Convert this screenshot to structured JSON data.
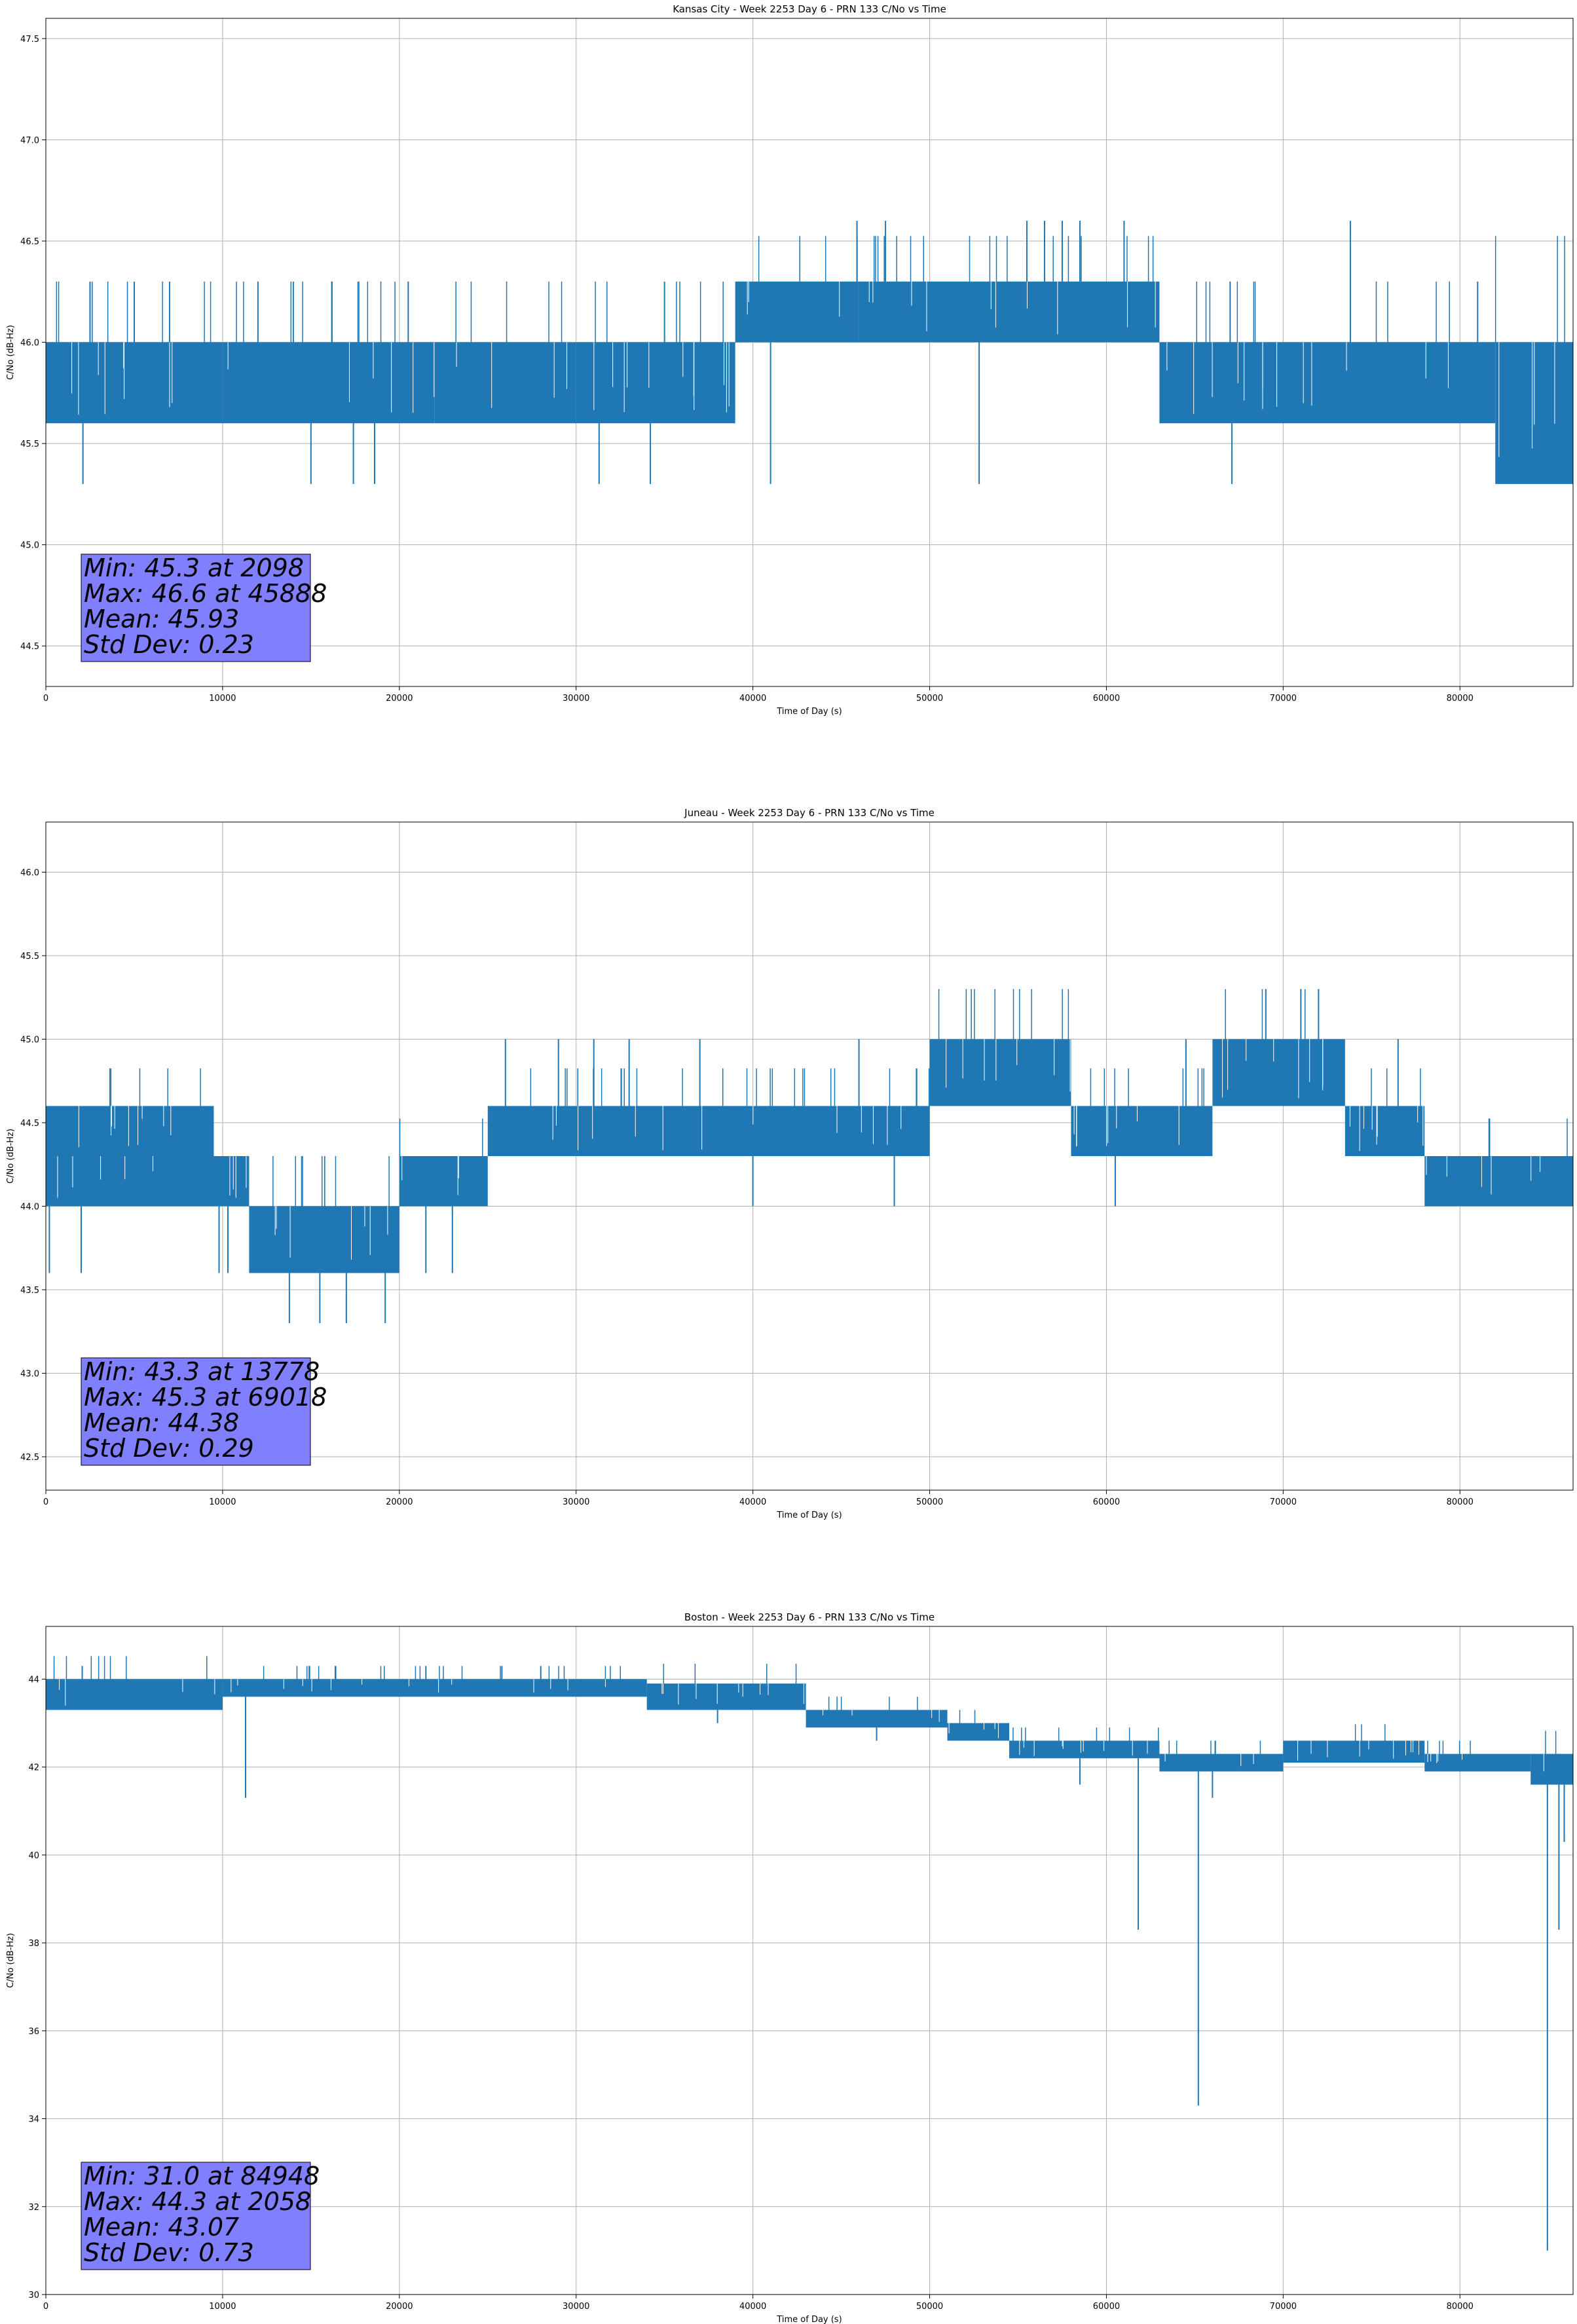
{
  "figure": {
    "background": "#ffffff",
    "line_color": "#1f77b4",
    "stats_box_color": "#8080ff",
    "grid_color": "#b0b0b0"
  },
  "chart_data": [
    {
      "type": "line",
      "title": "Kansas City - Week 2253 Day 6 - PRN 133 C/No vs Time",
      "xlabel": "Time of Day (s)",
      "ylabel": "C/No (dB-Hz)",
      "xlim": [
        0,
        86400
      ],
      "ylim": [
        44.3,
        47.6
      ],
      "xticks": [
        0,
        10000,
        20000,
        30000,
        40000,
        50000,
        60000,
        70000,
        80000
      ],
      "yticks": [
        44.5,
        45.0,
        45.5,
        46.0,
        46.5,
        47.0,
        47.5
      ],
      "ytick_labels": [
        "44.5",
        "45.0",
        "45.5",
        "46.0",
        "46.5",
        "47.0",
        "47.5"
      ],
      "grid": true,
      "series": [
        {
          "bands": [
            {
              "x": [
                0,
                10000
              ],
              "y": [
                45.6,
                46.0
              ]
            },
            {
              "x": [
                10000,
                22000
              ],
              "y": [
                45.6,
                46.0
              ]
            },
            {
              "x": [
                22000,
                30000
              ],
              "y": [
                45.6,
                46.0
              ]
            },
            {
              "x": [
                30000,
                39000
              ],
              "y": [
                45.6,
                46.0
              ]
            },
            {
              "x": [
                39000,
                46000
              ],
              "y": [
                46.0,
                46.3
              ]
            },
            {
              "x": [
                46000,
                63000
              ],
              "y": [
                46.0,
                46.3
              ]
            },
            {
              "x": [
                63000,
                82000
              ],
              "y": [
                45.6,
                46.0
              ]
            },
            {
              "x": [
                82000,
                86400
              ],
              "y": [
                45.3,
                46.0
              ]
            }
          ],
          "spikes": [
            {
              "x": 2098,
              "y": 45.3
            },
            {
              "x": 15000,
              "y": 45.3
            },
            {
              "x": 17400,
              "y": 45.3
            },
            {
              "x": 18600,
              "y": 45.3
            },
            {
              "x": 31300,
              "y": 45.3
            },
            {
              "x": 34200,
              "y": 45.3
            },
            {
              "x": 41000,
              "y": 45.3
            },
            {
              "x": 52800,
              "y": 45.3
            },
            {
              "x": 67100,
              "y": 45.3
            },
            {
              "x": 45888,
              "y": 46.6
            },
            {
              "x": 47500,
              "y": 46.6
            },
            {
              "x": 55500,
              "y": 46.6
            },
            {
              "x": 56500,
              "y": 46.6
            },
            {
              "x": 57500,
              "y": 46.6
            },
            {
              "x": 58500,
              "y": 46.6
            },
            {
              "x": 61000,
              "y": 46.6
            },
            {
              "x": 73800,
              "y": 46.6
            },
            {
              "x": 2500,
              "y": 46.3
            },
            {
              "x": 5000,
              "y": 46.3
            },
            {
              "x": 7000,
              "y": 46.3
            },
            {
              "x": 12000,
              "y": 46.3
            },
            {
              "x": 14000,
              "y": 46.3
            },
            {
              "x": 20500,
              "y": 46.3
            },
            {
              "x": 35000,
              "y": 46.3
            },
            {
              "x": 67000,
              "y": 46.3
            },
            {
              "x": 81000,
              "y": 46.3
            }
          ]
        }
      ],
      "stats": [
        "Min: 45.3 at 2098",
        "Max: 46.6 at 45888",
        "Mean: 45.93",
        "Std Dev: 0.23"
      ]
    },
    {
      "type": "line",
      "title": "Juneau - Week 2253 Day 6 - PRN 133 C/No vs Time",
      "xlabel": "Time of Day (s)",
      "ylabel": "C/No (dB-Hz)",
      "xlim": [
        0,
        86400
      ],
      "ylim": [
        42.3,
        46.3
      ],
      "xticks": [
        0,
        10000,
        20000,
        30000,
        40000,
        50000,
        60000,
        70000,
        80000
      ],
      "yticks": [
        42.5,
        43.0,
        43.5,
        44.0,
        44.5,
        45.0,
        45.5,
        46.0
      ],
      "ytick_labels": [
        "42.5",
        "43.0",
        "43.5",
        "44.0",
        "44.5",
        "45.0",
        "45.5",
        "46.0"
      ],
      "grid": true,
      "series": [
        {
          "bands": [
            {
              "x": [
                0,
                9500
              ],
              "y": [
                44.3,
                44.6
              ]
            },
            {
              "x": [
                0,
                11500
              ],
              "y": [
                44.0,
                44.3
              ]
            },
            {
              "x": [
                11500,
                20000
              ],
              "y": [
                43.6,
                44.0
              ]
            },
            {
              "x": [
                20000,
                25000
              ],
              "y": [
                44.0,
                44.3
              ]
            },
            {
              "x": [
                25000,
                50000
              ],
              "y": [
                44.3,
                44.6
              ]
            },
            {
              "x": [
                50000,
                58000
              ],
              "y": [
                44.6,
                45.0
              ]
            },
            {
              "x": [
                58000,
                66000
              ],
              "y": [
                44.3,
                44.6
              ]
            },
            {
              "x": [
                66000,
                73500
              ],
              "y": [
                44.6,
                45.0
              ]
            },
            {
              "x": [
                73500,
                78000
              ],
              "y": [
                44.3,
                44.6
              ]
            },
            {
              "x": [
                78000,
                86400
              ],
              "y": [
                44.0,
                44.3
              ]
            }
          ],
          "spikes": [
            {
              "x": 200,
              "y": 43.6
            },
            {
              "x": 2000,
              "y": 43.6
            },
            {
              "x": 13778,
              "y": 43.3
            },
            {
              "x": 15500,
              "y": 43.3
            },
            {
              "x": 17000,
              "y": 43.3
            },
            {
              "x": 19200,
              "y": 43.3
            },
            {
              "x": 23000,
              "y": 43.6
            },
            {
              "x": 21500,
              "y": 43.6
            },
            {
              "x": 69018,
              "y": 45.3
            },
            {
              "x": 71000,
              "y": 45.3
            },
            {
              "x": 72000,
              "y": 45.3
            },
            {
              "x": 26000,
              "y": 45.0
            },
            {
              "x": 29000,
              "y": 45.0
            },
            {
              "x": 31000,
              "y": 45.0
            },
            {
              "x": 33000,
              "y": 45.0
            },
            {
              "x": 37000,
              "y": 45.0
            },
            {
              "x": 46000,
              "y": 45.0
            },
            {
              "x": 64500,
              "y": 45.0
            },
            {
              "x": 76500,
              "y": 45.0
            },
            {
              "x": 40000,
              "y": 44.0
            },
            {
              "x": 48000,
              "y": 44.0
            },
            {
              "x": 60500,
              "y": 44.0
            },
            {
              "x": 9800,
              "y": 43.6
            },
            {
              "x": 10300,
              "y": 43.6
            }
          ]
        }
      ],
      "stats": [
        "Min: 43.3 at 13778",
        "Max: 45.3 at 69018",
        "Mean: 44.38",
        "Std Dev: 0.29"
      ]
    },
    {
      "type": "line",
      "title": "Boston - Week 2253 Day 6 - PRN 133 C/No vs Time",
      "xlabel": "Time of Day (s)",
      "ylabel": "C/No (dB-Hz)",
      "xlim": [
        0,
        86400
      ],
      "ylim": [
        30,
        45.2
      ],
      "xticks": [
        0,
        10000,
        20000,
        30000,
        40000,
        50000,
        60000,
        70000,
        80000
      ],
      "yticks": [
        30,
        32,
        34,
        36,
        38,
        40,
        42,
        44
      ],
      "ytick_labels": [
        "30",
        "32",
        "34",
        "36",
        "38",
        "40",
        "42",
        "44"
      ],
      "grid": true,
      "series": [
        {
          "bands": [
            {
              "x": [
                0,
                10000
              ],
              "y": [
                43.3,
                44.0
              ]
            },
            {
              "x": [
                10000,
                34000
              ],
              "y": [
                43.6,
                44.0
              ]
            },
            {
              "x": [
                34000,
                43000
              ],
              "y": [
                43.3,
                43.9
              ]
            },
            {
              "x": [
                43000,
                51000
              ],
              "y": [
                42.9,
                43.3
              ]
            },
            {
              "x": [
                51000,
                54500
              ],
              "y": [
                42.6,
                43.0
              ]
            },
            {
              "x": [
                54500,
                63000
              ],
              "y": [
                42.2,
                42.6
              ]
            },
            {
              "x": [
                63000,
                70000
              ],
              "y": [
                41.9,
                42.3
              ]
            },
            {
              "x": [
                70000,
                78000
              ],
              "y": [
                42.1,
                42.6
              ]
            },
            {
              "x": [
                78000,
                84000
              ],
              "y": [
                41.9,
                42.3
              ]
            },
            {
              "x": [
                84000,
                86400
              ],
              "y": [
                41.6,
                42.3
              ]
            }
          ],
          "spikes": [
            {
              "x": 11300,
              "y": 41.3
            },
            {
              "x": 61800,
              "y": 38.3
            },
            {
              "x": 65200,
              "y": 34.3
            },
            {
              "x": 84948,
              "y": 31.0
            },
            {
              "x": 85600,
              "y": 38.3
            },
            {
              "x": 85900,
              "y": 40.3
            },
            {
              "x": 2058,
              "y": 44.3
            },
            {
              "x": 21500,
              "y": 44.3
            },
            {
              "x": 25800,
              "y": 44.3
            },
            {
              "x": 28000,
              "y": 44.3
            },
            {
              "x": 38000,
              "y": 43.0
            },
            {
              "x": 47000,
              "y": 42.6
            },
            {
              "x": 58500,
              "y": 41.6
            },
            {
              "x": 66000,
              "y": 41.3
            }
          ]
        }
      ],
      "stats": [
        "Min: 31.0 at 84948",
        "Max: 44.3 at 2058",
        "Mean: 43.07",
        "Std Dev: 0.73"
      ]
    }
  ]
}
